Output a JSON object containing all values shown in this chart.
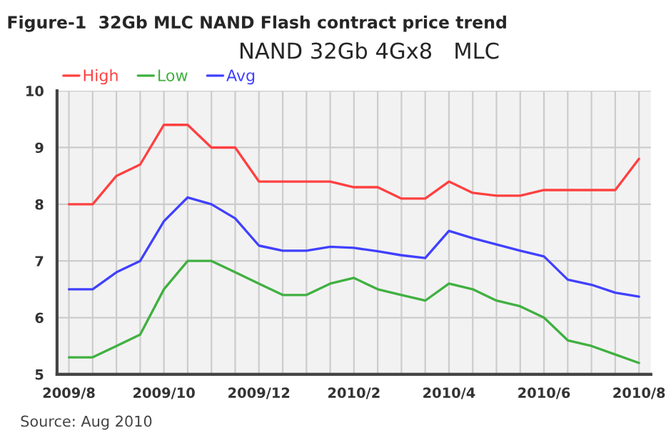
{
  "chart_data": {
    "type": "line",
    "title": "Figure-1  32Gb MLC NAND Flash contract price trend",
    "subtitle": "NAND 32Gb 4Gx8   MLC",
    "categories": [
      "2009/8",
      null,
      null,
      null,
      "2009/10",
      null,
      null,
      null,
      "2009/12",
      null,
      null,
      null,
      "2010/2",
      null,
      null,
      null,
      "2010/4",
      null,
      null,
      null,
      "2010/6",
      null,
      null,
      null,
      "2010/8"
    ],
    "series": [
      {
        "name": "High",
        "color": "#ff4040",
        "values": [
          8,
          8,
          8.5,
          8.7,
          9.4,
          9.4,
          9.0,
          9.0,
          8.4,
          8.4,
          8.4,
          8.4,
          8.3,
          8.3,
          8.1,
          8.1,
          8.4,
          8.2,
          8.15,
          8.15,
          8.25,
          8.25,
          8.25,
          8.25,
          8.8
        ]
      },
      {
        "name": "Low",
        "color": "#40b040",
        "values": [
          5.3,
          5.3,
          5.5,
          5.7,
          6.5,
          7.0,
          7.0,
          6.8,
          6.6,
          6.4,
          6.4,
          6.6,
          6.7,
          6.5,
          6.4,
          6.3,
          6.6,
          6.5,
          6.3,
          6.2,
          6.0,
          5.6,
          5.5,
          5.35,
          5.2
        ]
      },
      {
        "name": "Avg",
        "color": "#4040ff",
        "values": [
          6.5,
          6.5,
          6.8,
          7.0,
          7.7,
          8.12,
          8.0,
          7.75,
          7.27,
          7.18,
          7.18,
          7.25,
          7.23,
          7.17,
          7.1,
          7.05,
          7.53,
          7.4,
          7.29,
          7.18,
          7.08,
          6.67,
          6.58,
          6.44,
          6.37
        ]
      }
    ],
    "ylim": [
      5,
      10
    ],
    "yticks": [
      5,
      6,
      7,
      8,
      9,
      10
    ],
    "grid": true,
    "legend": "top left",
    "marker": "none",
    "line_style": "solid",
    "annotations": [
      "Source: Aug 2010"
    ]
  }
}
